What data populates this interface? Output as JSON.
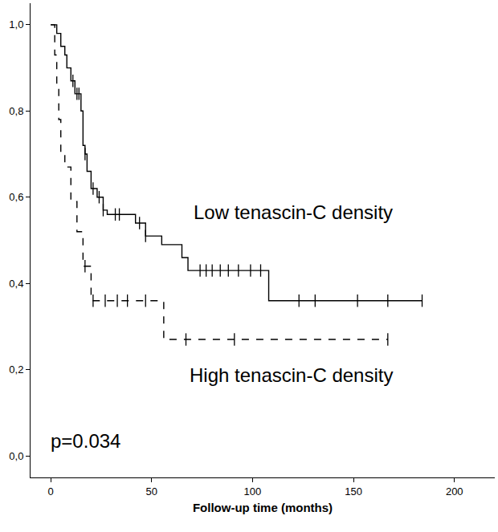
{
  "chart_data": {
    "type": "step",
    "x_label": "Follow-up time (months)",
    "xlim": [
      -10,
      220
    ],
    "xticks": [
      0,
      50,
      100,
      150,
      200
    ],
    "ylim": [
      -0.05,
      1.05
    ],
    "yticks": [
      {
        "value": 0,
        "label": "0,0"
      },
      {
        "value": 0.2,
        "label": "0,2"
      },
      {
        "value": 0.4,
        "label": "0,4"
      },
      {
        "value": 0.6,
        "label": "0,6"
      },
      {
        "value": 0.8,
        "label": "0,8"
      },
      {
        "value": 1.0,
        "label": "1,0"
      }
    ],
    "grid": false,
    "legend": false,
    "annotations": [
      {
        "text": "p=0.034",
        "x": -1,
        "y": 0.035
      }
    ],
    "series": [
      {
        "name": "Low tenascin-C density",
        "color": "#000000",
        "line_style": "solid",
        "marker": "cross",
        "label_x": 120,
        "label_y": 0.565,
        "x": [
          0,
          3,
          5,
          7,
          8,
          10,
          12,
          15,
          16,
          17,
          18,
          20,
          23,
          26,
          28,
          42,
          47,
          55,
          65,
          68,
          108,
          184
        ],
        "values": [
          1.0,
          0.98,
          0.95,
          0.93,
          0.9,
          0.87,
          0.84,
          0.8,
          0.72,
          0.7,
          0.66,
          0.62,
          0.6,
          0.57,
          0.56,
          0.54,
          0.51,
          0.49,
          0.46,
          0.43,
          0.36,
          0.36
        ],
        "censored_x": [
          11,
          13,
          14,
          17,
          21,
          24,
          26,
          32,
          34,
          44,
          47,
          74,
          77,
          80,
          84,
          88,
          93,
          99,
          104,
          123,
          131,
          152,
          167,
          184
        ],
        "censored_values": [
          0.87,
          0.84,
          0.84,
          0.7,
          0.62,
          0.6,
          0.57,
          0.56,
          0.56,
          0.54,
          0.51,
          0.43,
          0.43,
          0.43,
          0.43,
          0.43,
          0.43,
          0.43,
          0.43,
          0.36,
          0.36,
          0.36,
          0.36,
          0.36
        ]
      },
      {
        "name": "High tenascin-C density",
        "color": "#000000",
        "line_style": "dashed",
        "marker": "cross",
        "label_x": 119,
        "label_y": 0.187,
        "x": [
          0,
          2,
          3,
          4,
          5,
          7,
          10,
          13,
          16,
          20,
          56,
          167
        ],
        "values": [
          1.0,
          0.93,
          0.85,
          0.78,
          0.7,
          0.67,
          0.59,
          0.52,
          0.44,
          0.36,
          0.27,
          0.27
        ],
        "censored_x": [
          17,
          21,
          27,
          33,
          38,
          47,
          67,
          91,
          167
        ],
        "censored_values": [
          0.44,
          0.36,
          0.36,
          0.36,
          0.36,
          0.36,
          0.27,
          0.27,
          0.27
        ]
      }
    ]
  }
}
